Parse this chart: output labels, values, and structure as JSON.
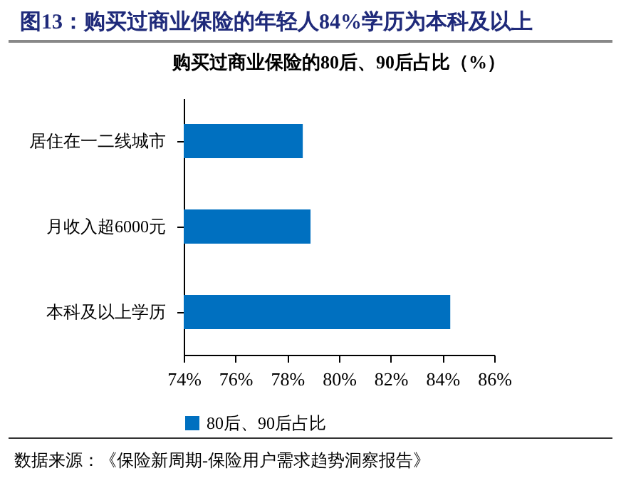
{
  "chart_data": {
    "type": "bar",
    "orientation": "horizontal",
    "title": "图13：购买过商业保险的年轻人84%学历为本科及以上",
    "subtitle": "购买过商业保险的80后、90后占比（%）",
    "categories": [
      "居住在一二线城市",
      "月收入超6000元",
      "本科及以上学历"
    ],
    "series": [
      {
        "name": "80后、90后占比",
        "color": "#0070c0",
        "values": [
          78.6,
          78.9,
          84.3
        ]
      }
    ],
    "xlim": [
      74,
      86
    ],
    "xticks": [
      {
        "value": 74,
        "label": "74%"
      },
      {
        "value": 76,
        "label": "76%"
      },
      {
        "value": 78,
        "label": "78%"
      },
      {
        "value": 80,
        "label": "80%"
      },
      {
        "value": 82,
        "label": "82%"
      },
      {
        "value": 84,
        "label": "84%"
      },
      {
        "value": 86,
        "label": "86%"
      }
    ],
    "grid": false,
    "legend": "bottom",
    "annotations": [
      "数据来源：《保险新周期-保险用户需求趋势洞察报告》"
    ]
  }
}
